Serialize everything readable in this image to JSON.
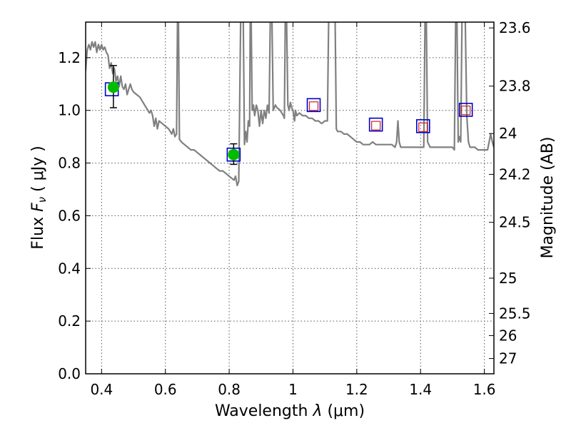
{
  "chart_data": {
    "type": "line",
    "xlabel_prefix": "Wavelength  ",
    "xlabel_symbol": "λ",
    "xlabel_unit": " (μm)",
    "ylabel_prefix": "Flux  ",
    "ylabel_symbol_main": "F",
    "ylabel_symbol_sub": "ν",
    "ylabel_unit": "  ( μJy )",
    "y2label": "Magnitude (AB)",
    "xlim": [
      0.35,
      1.63
    ],
    "ylim": [
      0.0,
      1.335
    ],
    "grid": true,
    "colors": {
      "model": "#808080",
      "detection": "#00bb00",
      "measured_box": "#0000cc",
      "upper_limit_box": "#cc2222",
      "errorbar": "#000000"
    },
    "x_ticks": [
      {
        "value": 0.4,
        "label": "0.4"
      },
      {
        "value": 0.6,
        "label": "0.6"
      },
      {
        "value": 0.8,
        "label": "0.8"
      },
      {
        "value": 1.0,
        "label": "1"
      },
      {
        "value": 1.2,
        "label": "1.2"
      },
      {
        "value": 1.4,
        "label": "1.4"
      },
      {
        "value": 1.6,
        "label": "1.6"
      }
    ],
    "y_ticks": [
      {
        "value": 0.0,
        "label": "0.0"
      },
      {
        "value": 0.2,
        "label": "0.2"
      },
      {
        "value": 0.4,
        "label": "0.4"
      },
      {
        "value": 0.6,
        "label": "0.6"
      },
      {
        "value": 0.8,
        "label": "0.8"
      },
      {
        "value": 1.0,
        "label": "1.0"
      },
      {
        "value": 1.2,
        "label": "1.2"
      }
    ],
    "y2_ticks": [
      {
        "flux": 1.313,
        "label": "23.6"
      },
      {
        "flux": 1.092,
        "label": "23.8"
      },
      {
        "flux": 0.912,
        "label": "24"
      },
      {
        "flux": 0.757,
        "label": "24.2"
      },
      {
        "flux": 0.575,
        "label": "24.5"
      },
      {
        "flux": 0.363,
        "label": "25"
      },
      {
        "flux": 0.229,
        "label": "25.5"
      },
      {
        "flux": 0.145,
        "label": "26"
      },
      {
        "flux": 0.058,
        "label": "27"
      }
    ],
    "model_spectrum": [
      [
        0.35,
        1.15
      ],
      [
        0.355,
        1.23
      ],
      [
        0.36,
        1.25
      ],
      [
        0.365,
        1.23
      ],
      [
        0.37,
        1.26
      ],
      [
        0.375,
        1.24
      ],
      [
        0.38,
        1.26
      ],
      [
        0.385,
        1.22
      ],
      [
        0.39,
        1.25
      ],
      [
        0.395,
        1.23
      ],
      [
        0.4,
        1.25
      ],
      [
        0.405,
        1.23
      ],
      [
        0.41,
        1.24
      ],
      [
        0.415,
        1.22
      ],
      [
        0.42,
        1.21
      ],
      [
        0.425,
        1.16
      ],
      [
        0.43,
        1.18
      ],
      [
        0.435,
        1.14
      ],
      [
        0.44,
        1.16
      ],
      [
        0.445,
        1.11
      ],
      [
        0.45,
        1.13
      ],
      [
        0.455,
        1.09
      ],
      [
        0.46,
        1.13
      ],
      [
        0.465,
        1.09
      ],
      [
        0.47,
        1.08
      ],
      [
        0.475,
        1.1
      ],
      [
        0.48,
        1.06
      ],
      [
        0.485,
        1.08
      ],
      [
        0.49,
        1.1
      ],
      [
        0.495,
        1.08
      ],
      [
        0.5,
        1.07
      ],
      [
        0.51,
        1.06
      ],
      [
        0.52,
        1.05
      ],
      [
        0.53,
        1.03
      ],
      [
        0.54,
        1.01
      ],
      [
        0.55,
        0.99
      ],
      [
        0.555,
        1.0
      ],
      [
        0.56,
        0.98
      ],
      [
        0.565,
        0.94
      ],
      [
        0.57,
        0.97
      ],
      [
        0.575,
        0.93
      ],
      [
        0.58,
        0.96
      ],
      [
        0.59,
        0.95
      ],
      [
        0.6,
        0.94
      ],
      [
        0.61,
        0.93
      ],
      [
        0.62,
        0.91
      ],
      [
        0.625,
        0.93
      ],
      [
        0.63,
        0.9
      ],
      [
        0.635,
        0.91
      ],
      [
        0.638,
        1.35
      ],
      [
        0.641,
        1.35
      ],
      [
        0.644,
        0.89
      ],
      [
        0.65,
        0.88
      ],
      [
        0.66,
        0.87
      ],
      [
        0.67,
        0.86
      ],
      [
        0.68,
        0.85
      ],
      [
        0.69,
        0.85
      ],
      [
        0.7,
        0.84
      ],
      [
        0.71,
        0.83
      ],
      [
        0.72,
        0.82
      ],
      [
        0.73,
        0.81
      ],
      [
        0.74,
        0.8
      ],
      [
        0.75,
        0.79
      ],
      [
        0.76,
        0.78
      ],
      [
        0.77,
        0.77
      ],
      [
        0.78,
        0.77
      ],
      [
        0.79,
        0.76
      ],
      [
        0.8,
        0.75
      ],
      [
        0.81,
        0.74
      ],
      [
        0.815,
        0.735
      ],
      [
        0.82,
        0.75
      ],
      [
        0.825,
        0.715
      ],
      [
        0.83,
        0.73
      ],
      [
        0.836,
        1.35
      ],
      [
        0.844,
        1.35
      ],
      [
        0.848,
        0.87
      ],
      [
        0.852,
        0.92
      ],
      [
        0.856,
        0.88
      ],
      [
        0.86,
        0.96
      ],
      [
        0.864,
        0.94
      ],
      [
        0.866,
        1.35
      ],
      [
        0.869,
        1.35
      ],
      [
        0.872,
        1.0
      ],
      [
        0.876,
        1.02
      ],
      [
        0.88,
        0.98
      ],
      [
        0.885,
        1.02
      ],
      [
        0.89,
        1.0
      ],
      [
        0.895,
        0.94
      ],
      [
        0.9,
        1.0
      ],
      [
        0.905,
        0.95
      ],
      [
        0.91,
        1.0
      ],
      [
        0.915,
        0.97
      ],
      [
        0.92,
        1.02
      ],
      [
        0.925,
        0.99
      ],
      [
        0.929,
        1.35
      ],
      [
        0.934,
        1.35
      ],
      [
        0.938,
        1.0
      ],
      [
        0.945,
        1.02
      ],
      [
        0.95,
        1.01
      ],
      [
        0.96,
        1.0
      ],
      [
        0.965,
        0.99
      ],
      [
        0.97,
        0.98
      ],
      [
        0.973,
        0.97
      ],
      [
        0.976,
        1.35
      ],
      [
        0.98,
        1.35
      ],
      [
        0.984,
        1.02
      ],
      [
        0.988,
        1.0
      ],
      [
        0.992,
        1.03
      ],
      [
        0.996,
        1.01
      ],
      [
        1.0,
        1.0
      ],
      [
        1.005,
        0.96
      ],
      [
        1.008,
        1.0
      ],
      [
        1.012,
        0.98
      ],
      [
        1.02,
        0.99
      ],
      [
        1.03,
        0.98
      ],
      [
        1.04,
        0.98
      ],
      [
        1.05,
        0.97
      ],
      [
        1.06,
        0.97
      ],
      [
        1.07,
        0.96
      ],
      [
        1.08,
        0.96
      ],
      [
        1.09,
        0.95
      ],
      [
        1.1,
        0.96
      ],
      [
        1.108,
        0.96
      ],
      [
        1.112,
        1.35
      ],
      [
        1.132,
        1.35
      ],
      [
        1.136,
        0.93
      ],
      [
        1.14,
        0.92
      ],
      [
        1.15,
        0.92
      ],
      [
        1.16,
        0.91
      ],
      [
        1.17,
        0.91
      ],
      [
        1.18,
        0.9
      ],
      [
        1.19,
        0.89
      ],
      [
        1.2,
        0.88
      ],
      [
        1.21,
        0.88
      ],
      [
        1.22,
        0.87
      ],
      [
        1.23,
        0.87
      ],
      [
        1.24,
        0.87
      ],
      [
        1.25,
        0.88
      ],
      [
        1.26,
        0.87
      ],
      [
        1.27,
        0.87
      ],
      [
        1.28,
        0.87
      ],
      [
        1.29,
        0.87
      ],
      [
        1.3,
        0.87
      ],
      [
        1.31,
        0.87
      ],
      [
        1.32,
        0.86
      ],
      [
        1.325,
        0.88
      ],
      [
        1.329,
        0.96
      ],
      [
        1.333,
        0.88
      ],
      [
        1.338,
        0.86
      ],
      [
        1.345,
        0.86
      ],
      [
        1.36,
        0.86
      ],
      [
        1.38,
        0.86
      ],
      [
        1.4,
        0.86
      ],
      [
        1.41,
        0.86
      ],
      [
        1.414,
        1.35
      ],
      [
        1.418,
        1.35
      ],
      [
        1.422,
        0.88
      ],
      [
        1.43,
        0.86
      ],
      [
        1.45,
        0.86
      ],
      [
        1.47,
        0.86
      ],
      [
        1.49,
        0.86
      ],
      [
        1.5,
        0.86
      ],
      [
        1.506,
        0.85
      ],
      [
        1.51,
        1.35
      ],
      [
        1.514,
        1.35
      ],
      [
        1.518,
        0.88
      ],
      [
        1.522,
        0.9
      ],
      [
        1.526,
        0.88
      ],
      [
        1.53,
        1.35
      ],
      [
        1.54,
        1.35
      ],
      [
        1.545,
        0.98
      ],
      [
        1.55,
        0.88
      ],
      [
        1.555,
        0.86
      ],
      [
        1.56,
        0.86
      ],
      [
        1.57,
        0.86
      ],
      [
        1.58,
        0.85
      ],
      [
        1.59,
        0.85
      ],
      [
        1.6,
        0.85
      ],
      [
        1.61,
        0.85
      ],
      [
        1.615,
        0.88
      ],
      [
        1.62,
        0.91
      ],
      [
        1.625,
        0.88
      ],
      [
        1.63,
        0.86
      ]
    ],
    "measured_boxes": [
      {
        "x": 0.432,
        "y": 1.08
      },
      {
        "x": 0.814,
        "y": 0.832
      },
      {
        "x": 1.065,
        "y": 1.02
      },
      {
        "x": 1.26,
        "y": 0.946
      },
      {
        "x": 1.408,
        "y": 0.94
      },
      {
        "x": 1.542,
        "y": 1.002
      }
    ],
    "upper_limit_boxes": [
      {
        "x": 1.065,
        "y": 1.016
      },
      {
        "x": 1.26,
        "y": 0.942
      },
      {
        "x": 1.408,
        "y": 0.936
      },
      {
        "x": 1.542,
        "y": 1.0
      }
    ],
    "detections": [
      {
        "x": 0.437,
        "y": 1.088,
        "yerr_low": 0.078,
        "yerr_high": 0.082
      },
      {
        "x": 0.814,
        "y": 0.832,
        "yerr_low": 0.037,
        "yerr_high": 0.041
      }
    ]
  }
}
